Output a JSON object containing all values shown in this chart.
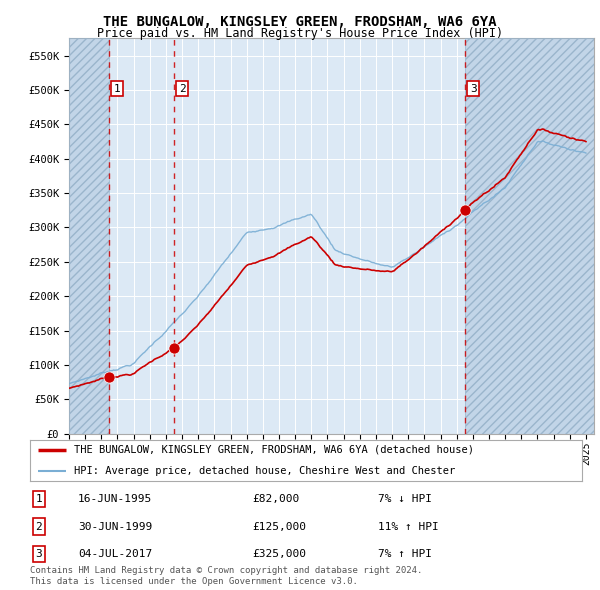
{
  "title": "THE BUNGALOW, KINGSLEY GREEN, FRODSHAM, WA6 6YA",
  "subtitle": "Price paid vs. HM Land Registry's House Price Index (HPI)",
  "footer_line1": "Contains HM Land Registry data © Crown copyright and database right 2024.",
  "footer_line2": "This data is licensed under the Open Government Licence v3.0.",
  "legend_line1": "THE BUNGALOW, KINGSLEY GREEN, FRODSHAM, WA6 6YA (detached house)",
  "legend_line2": "HPI: Average price, detached house, Cheshire West and Chester",
  "sales": [
    {
      "num": 1,
      "date": "16-JUN-1995",
      "price": 82000,
      "year": 1995.46,
      "hpi_pct": "7%",
      "hpi_dir": "↓"
    },
    {
      "num": 2,
      "date": "30-JUN-1999",
      "price": 125000,
      "year": 1999.5,
      "hpi_pct": "11%",
      "hpi_dir": "↑"
    },
    {
      "num": 3,
      "date": "04-JUL-2017",
      "price": 325000,
      "year": 2017.51,
      "hpi_pct": "7%",
      "hpi_dir": "↑"
    }
  ],
  "ylim": [
    0,
    575000
  ],
  "xlim_start": 1993.0,
  "xlim_end": 2025.5,
  "hatch_left_end": 1995.46,
  "hatch_right_start": 2017.51,
  "background_color": "#ffffff",
  "plot_bg_color": "#dce9f5",
  "hatch_bg_color": "#c2d5e8",
  "grid_color": "#ffffff",
  "red_line_color": "#cc0000",
  "blue_line_color": "#7aaed4",
  "sale_dot_color": "#cc0000",
  "vline_color_red": "#cc0000",
  "vline_color_gray": "#888888",
  "box_border_color": "#cc0000"
}
